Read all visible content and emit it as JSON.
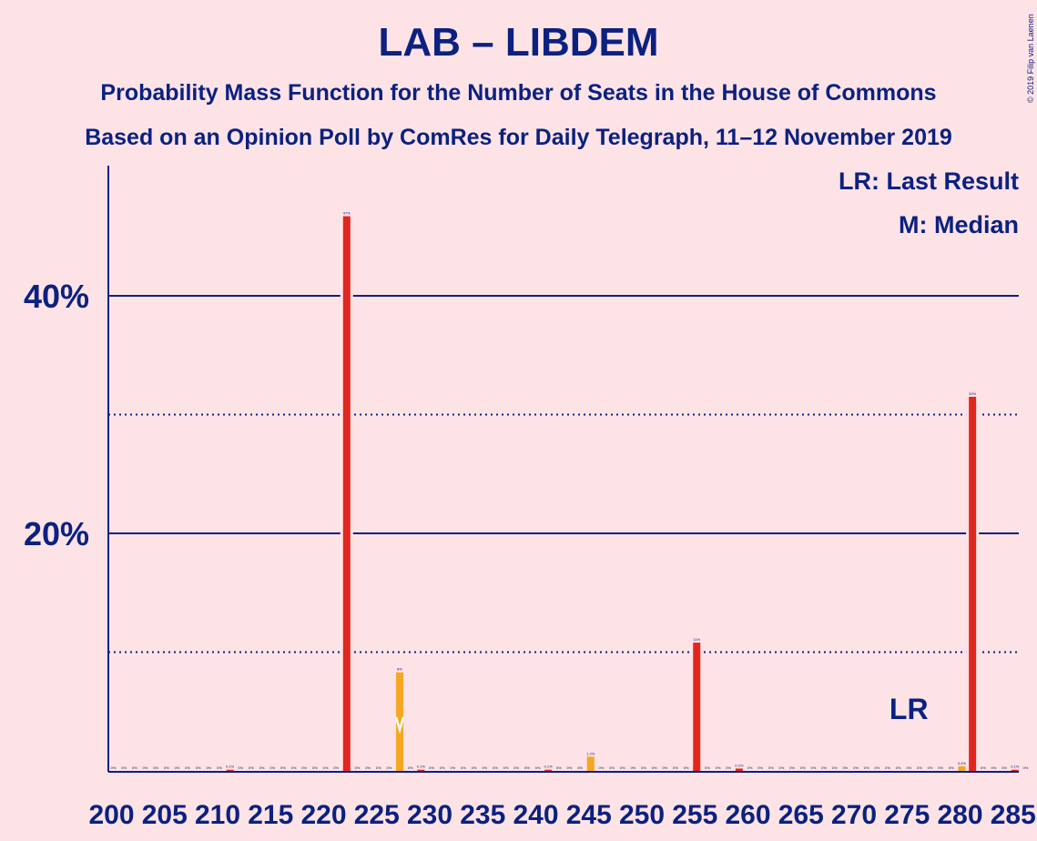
{
  "title": "LAB – LIBDEM",
  "subtitle1": "Probability Mass Function for the Number of Seats in the House of Commons",
  "subtitle2": "Based on an Opinion Poll by ComRes for Daily Telegraph, 11–12 November 2019",
  "copyright": "© 2019 Filip van Laenen",
  "legend": {
    "last_result": "LR: Last Result",
    "median": "M: Median"
  },
  "colors": {
    "background": "#fde3e6",
    "text": "#0b2180",
    "bar_main": "#e0271f",
    "bar_median": "#f5a623",
    "gridline": "#0b2180"
  },
  "chart_data": {
    "type": "bar",
    "xlabel": "",
    "ylabel": "",
    "x_range": [
      200,
      285
    ],
    "ylim": [
      0,
      50
    ],
    "y_ticks": [
      {
        "value": 20,
        "label": "20%"
      },
      {
        "value": 40,
        "label": "40%"
      }
    ],
    "y_dotted": [
      10,
      30
    ],
    "x_ticks": [
      200,
      205,
      210,
      215,
      220,
      225,
      230,
      235,
      240,
      245,
      250,
      255,
      260,
      265,
      270,
      275,
      280,
      285
    ],
    "last_result_seat": 275,
    "last_result_label": "LR",
    "median_seat": 227,
    "median_label": "M",
    "bars": [
      {
        "seat": 200,
        "value": 0,
        "label": "0%"
      },
      {
        "seat": 201,
        "value": 0,
        "label": "0%"
      },
      {
        "seat": 202,
        "value": 0,
        "label": "0%"
      },
      {
        "seat": 203,
        "value": 0,
        "label": "0%"
      },
      {
        "seat": 204,
        "value": 0,
        "label": "0%"
      },
      {
        "seat": 205,
        "value": 0,
        "label": "0%"
      },
      {
        "seat": 206,
        "value": 0,
        "label": "0%"
      },
      {
        "seat": 207,
        "value": 0,
        "label": "0%"
      },
      {
        "seat": 208,
        "value": 0,
        "label": "0%"
      },
      {
        "seat": 209,
        "value": 0,
        "label": "0%"
      },
      {
        "seat": 210,
        "value": 0,
        "label": "0%"
      },
      {
        "seat": 211,
        "value": 0.1,
        "label": "0.1%"
      },
      {
        "seat": 212,
        "value": 0,
        "label": "0%"
      },
      {
        "seat": 213,
        "value": 0,
        "label": "0%"
      },
      {
        "seat": 214,
        "value": 0,
        "label": "0%"
      },
      {
        "seat": 215,
        "value": 0,
        "label": "0%"
      },
      {
        "seat": 216,
        "value": 0,
        "label": "0%"
      },
      {
        "seat": 217,
        "value": 0,
        "label": "0%"
      },
      {
        "seat": 218,
        "value": 0,
        "label": "0%"
      },
      {
        "seat": 219,
        "value": 0,
        "label": "0%"
      },
      {
        "seat": 220,
        "value": 0,
        "label": "0%"
      },
      {
        "seat": 221,
        "value": 0,
        "label": "0%"
      },
      {
        "seat": 222,
        "value": 46.7,
        "label": "47%"
      },
      {
        "seat": 223,
        "value": 0,
        "label": "0%"
      },
      {
        "seat": 224,
        "value": 0,
        "label": "0%"
      },
      {
        "seat": 225,
        "value": 0,
        "label": "0%"
      },
      {
        "seat": 226,
        "value": 0,
        "label": "0%"
      },
      {
        "seat": 227,
        "value": 8.3,
        "label": "8%"
      },
      {
        "seat": 228,
        "value": 0,
        "label": "0%"
      },
      {
        "seat": 229,
        "value": 0.1,
        "label": "0.1%"
      },
      {
        "seat": 230,
        "value": 0,
        "label": "0%"
      },
      {
        "seat": 231,
        "value": 0,
        "label": "0%"
      },
      {
        "seat": 232,
        "value": 0,
        "label": "0%"
      },
      {
        "seat": 233,
        "value": 0,
        "label": "0%"
      },
      {
        "seat": 234,
        "value": 0,
        "label": "0%"
      },
      {
        "seat": 235,
        "value": 0,
        "label": "0%"
      },
      {
        "seat": 236,
        "value": 0,
        "label": "0%"
      },
      {
        "seat": 237,
        "value": 0,
        "label": "0%"
      },
      {
        "seat": 238,
        "value": 0,
        "label": "0%"
      },
      {
        "seat": 239,
        "value": 0,
        "label": "0%"
      },
      {
        "seat": 240,
        "value": 0,
        "label": "0%"
      },
      {
        "seat": 241,
        "value": 0.1,
        "label": "0.1%"
      },
      {
        "seat": 242,
        "value": 0,
        "label": "0%"
      },
      {
        "seat": 243,
        "value": 0,
        "label": "0%"
      },
      {
        "seat": 244,
        "value": 0,
        "label": "0%"
      },
      {
        "seat": 245,
        "value": 1.2,
        "label": "1.2%"
      },
      {
        "seat": 246,
        "value": 0,
        "label": "0%"
      },
      {
        "seat": 247,
        "value": 0,
        "label": "0%"
      },
      {
        "seat": 248,
        "value": 0,
        "label": "0%"
      },
      {
        "seat": 249,
        "value": 0,
        "label": "0%"
      },
      {
        "seat": 250,
        "value": 0,
        "label": "0%"
      },
      {
        "seat": 251,
        "value": 0,
        "label": "0%"
      },
      {
        "seat": 252,
        "value": 0,
        "label": "0%"
      },
      {
        "seat": 253,
        "value": 0,
        "label": "0%"
      },
      {
        "seat": 254,
        "value": 0,
        "label": "0%"
      },
      {
        "seat": 255,
        "value": 10.8,
        "label": "11%"
      },
      {
        "seat": 256,
        "value": 0,
        "label": "0%"
      },
      {
        "seat": 257,
        "value": 0,
        "label": "0%"
      },
      {
        "seat": 258,
        "value": 0,
        "label": "0%"
      },
      {
        "seat": 259,
        "value": 0.2,
        "label": "0.2%"
      },
      {
        "seat": 260,
        "value": 0,
        "label": "0%"
      },
      {
        "seat": 261,
        "value": 0,
        "label": "0%"
      },
      {
        "seat": 262,
        "value": 0,
        "label": "0%"
      },
      {
        "seat": 263,
        "value": 0,
        "label": "0%"
      },
      {
        "seat": 264,
        "value": 0,
        "label": "0%"
      },
      {
        "seat": 265,
        "value": 0,
        "label": "0%"
      },
      {
        "seat": 266,
        "value": 0,
        "label": "0%"
      },
      {
        "seat": 267,
        "value": 0,
        "label": "0%"
      },
      {
        "seat": 268,
        "value": 0,
        "label": "0%"
      },
      {
        "seat": 269,
        "value": 0,
        "label": "0%"
      },
      {
        "seat": 270,
        "value": 0,
        "label": "0%"
      },
      {
        "seat": 271,
        "value": 0,
        "label": "0%"
      },
      {
        "seat": 272,
        "value": 0,
        "label": "0%"
      },
      {
        "seat": 273,
        "value": 0,
        "label": "0%"
      },
      {
        "seat": 274,
        "value": 0,
        "label": "0%"
      },
      {
        "seat": 275,
        "value": 0,
        "label": "0%"
      },
      {
        "seat": 276,
        "value": 0,
        "label": "0%"
      },
      {
        "seat": 277,
        "value": 0,
        "label": "0%"
      },
      {
        "seat": 278,
        "value": 0,
        "label": "0%"
      },
      {
        "seat": 279,
        "value": 0,
        "label": "0%"
      },
      {
        "seat": 280,
        "value": 0.4,
        "label": "0.4%"
      },
      {
        "seat": 281,
        "value": 31.5,
        "label": "32%"
      },
      {
        "seat": 282,
        "value": 0,
        "label": "0%"
      },
      {
        "seat": 283,
        "value": 0,
        "label": "0%"
      },
      {
        "seat": 284,
        "value": 0,
        "label": "0%"
      },
      {
        "seat": 285,
        "value": 0.1,
        "label": "0.1%"
      },
      {
        "seat": 286,
        "value": 0,
        "label": "0%"
      }
    ]
  }
}
